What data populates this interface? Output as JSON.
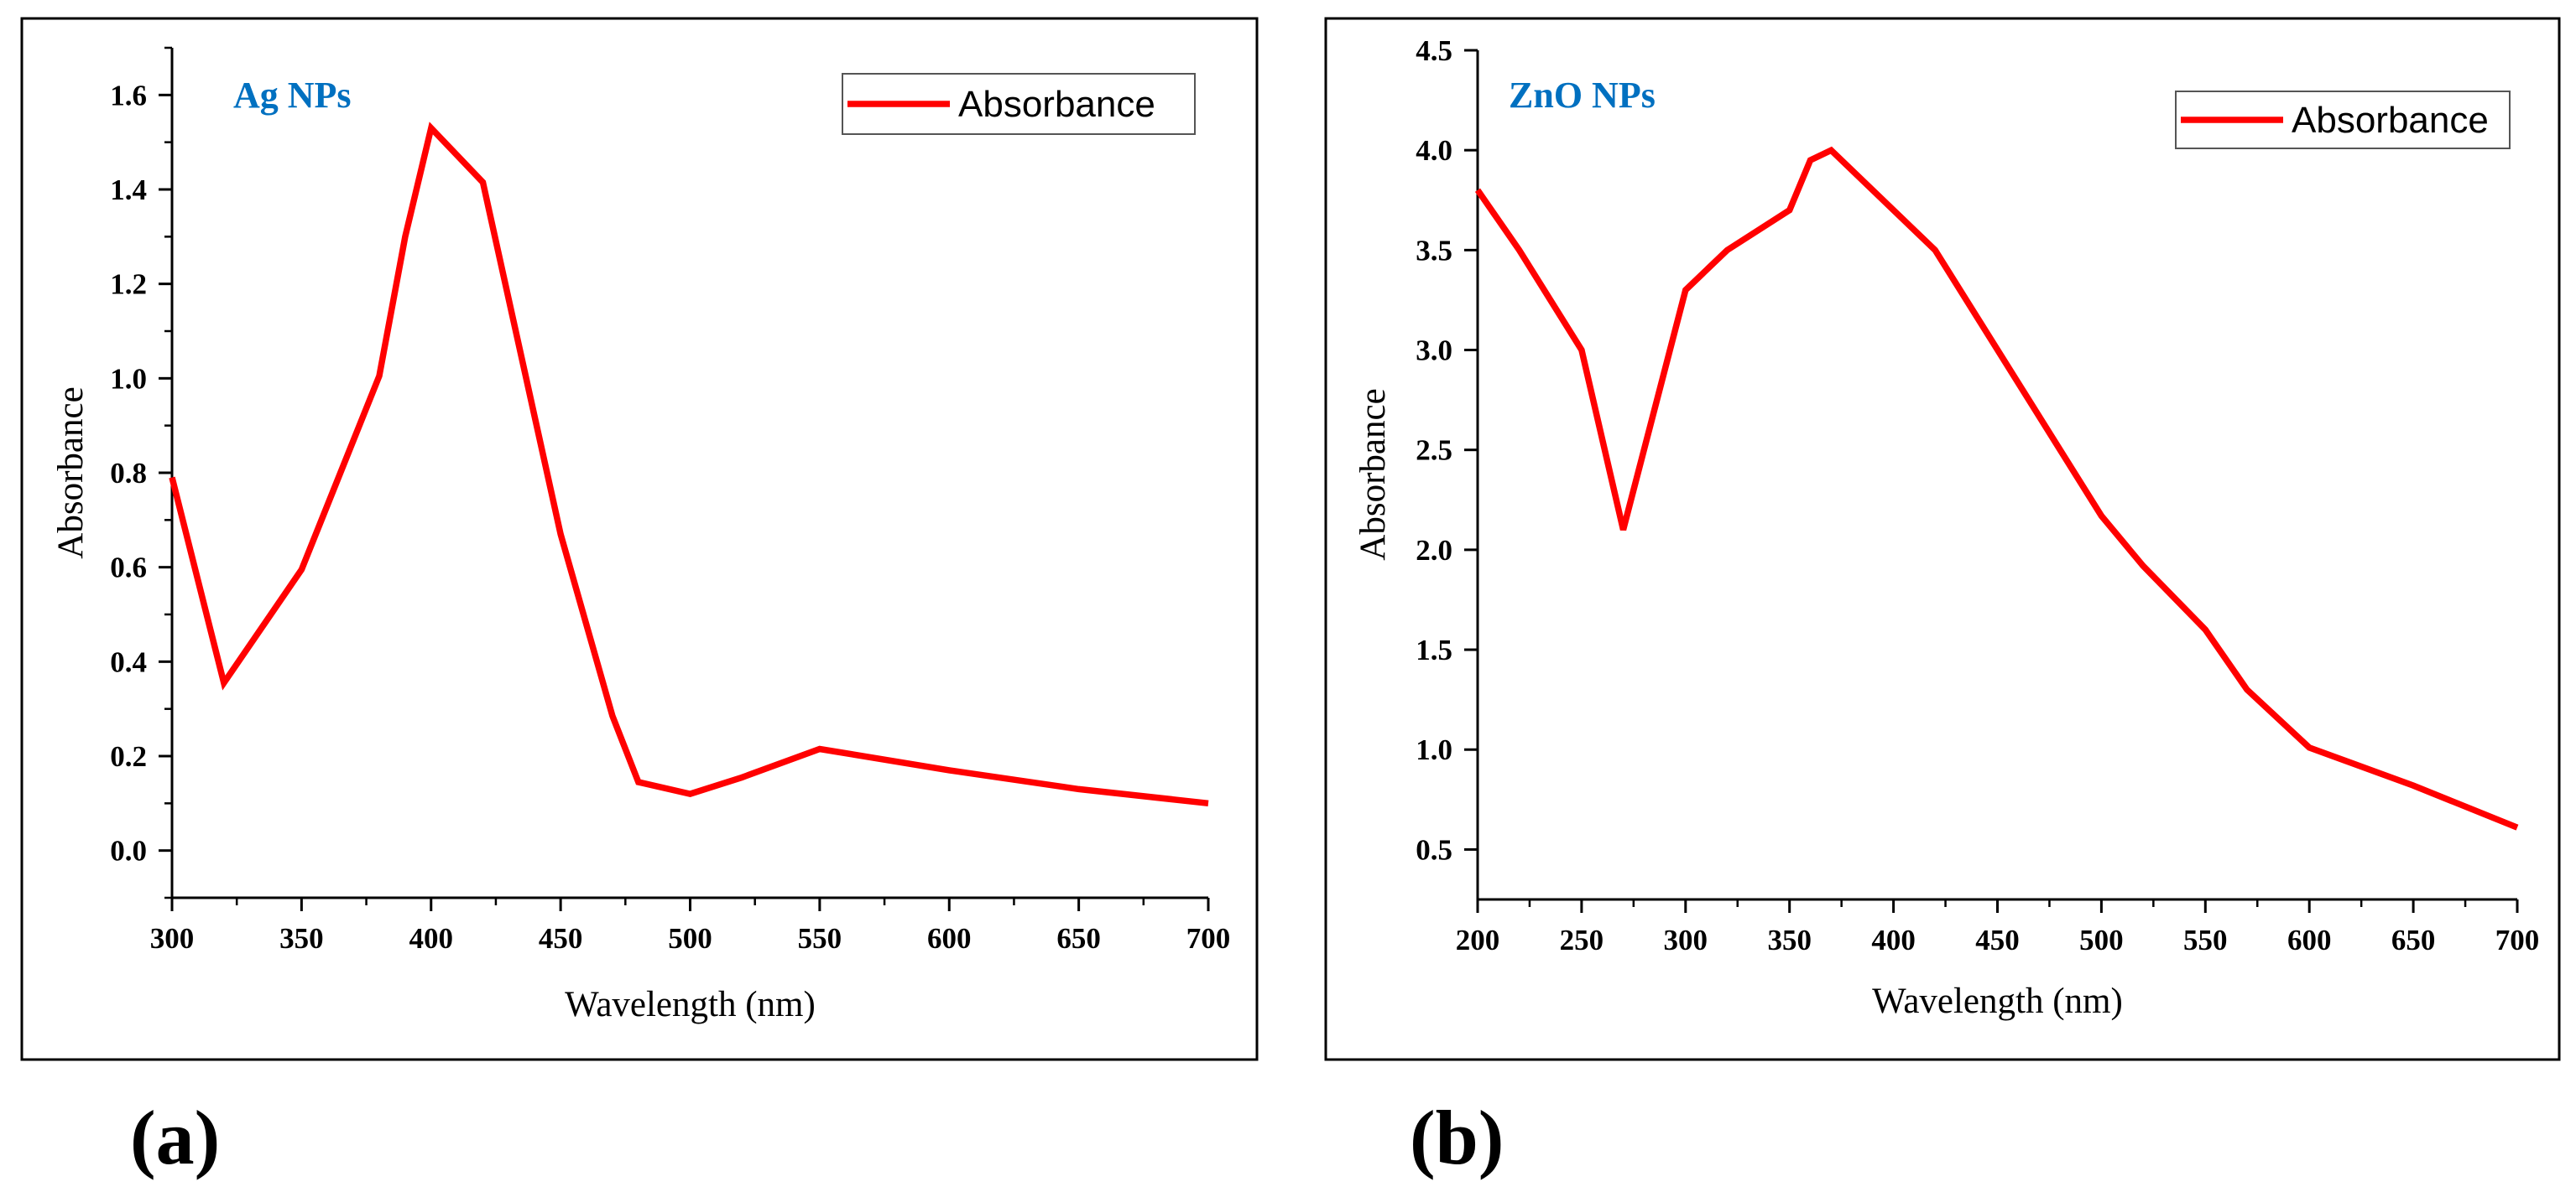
{
  "colors": {
    "series": "#ff0000",
    "panel_title": "#0070c0"
  },
  "chart_data": [
    {
      "type": "line",
      "caption": "(a)",
      "title": "Ag NPs",
      "xlabel": "Wavelength (nm)",
      "ylabel": "Absorbance",
      "xlim": [
        300,
        700
      ],
      "ylim": [
        -0.1,
        1.7
      ],
      "xticks": [
        300,
        350,
        400,
        450,
        500,
        550,
        600,
        650,
        700
      ],
      "xtick_labels": [
        "300",
        "350",
        "400",
        "450",
        "500",
        "550",
        "600",
        "650",
        "700"
      ],
      "yticks": [
        0.0,
        0.2,
        0.4,
        0.6,
        0.8,
        1.0,
        1.2,
        1.4,
        1.6
      ],
      "ytick_labels": [
        "0.0",
        "0.2",
        "0.4",
        "0.6",
        "0.8",
        "1.0",
        "1.2",
        "1.4",
        "1.6"
      ],
      "legend": {
        "label": "Absorbance",
        "position": "top-right"
      },
      "series": [
        {
          "name": "Absorbance",
          "x": [
            300,
            320,
            350,
            380,
            390,
            400,
            420,
            450,
            470,
            480,
            500,
            520,
            550,
            600,
            650,
            700
          ],
          "y": [
            0.79,
            0.355,
            0.595,
            1.005,
            1.3,
            1.53,
            1.415,
            0.67,
            0.285,
            0.145,
            0.12,
            0.155,
            0.215,
            0.17,
            0.13,
            0.1
          ]
        }
      ]
    },
    {
      "type": "line",
      "caption": "(b)",
      "title": "ZnO NPs",
      "xlabel": "Wavelength (nm)",
      "ylabel": "Absorbance",
      "xlim": [
        200,
        700
      ],
      "ylim": [
        0.25,
        4.5
      ],
      "xticks": [
        200,
        250,
        300,
        350,
        400,
        450,
        500,
        550,
        600,
        650,
        700
      ],
      "xtick_labels": [
        "200",
        "250",
        "300",
        "350",
        "400",
        "450",
        "500",
        "550",
        "600",
        "650",
        "700"
      ],
      "yticks": [
        0.5,
        1.0,
        1.5,
        2.0,
        2.5,
        3.0,
        3.5,
        4.0,
        4.5
      ],
      "ytick_labels": [
        "0.5",
        "1.0",
        "1.5",
        "2.0",
        "2.5",
        "3.0",
        "3.5",
        "4.0",
        "4.5"
      ],
      "legend": {
        "label": "Absorbance",
        "position": "top-right"
      },
      "series": [
        {
          "name": "Absorbance",
          "x": [
            200,
            220,
            250,
            270,
            300,
            320,
            350,
            360,
            370,
            420,
            500,
            520,
            550,
            570,
            600,
            650,
            700
          ],
          "y": [
            3.8,
            3.5,
            3.0,
            2.1,
            3.3,
            3.5,
            3.7,
            3.95,
            4.0,
            3.5,
            2.17,
            1.92,
            1.6,
            1.3,
            1.01,
            0.82,
            0.61
          ]
        }
      ]
    }
  ]
}
